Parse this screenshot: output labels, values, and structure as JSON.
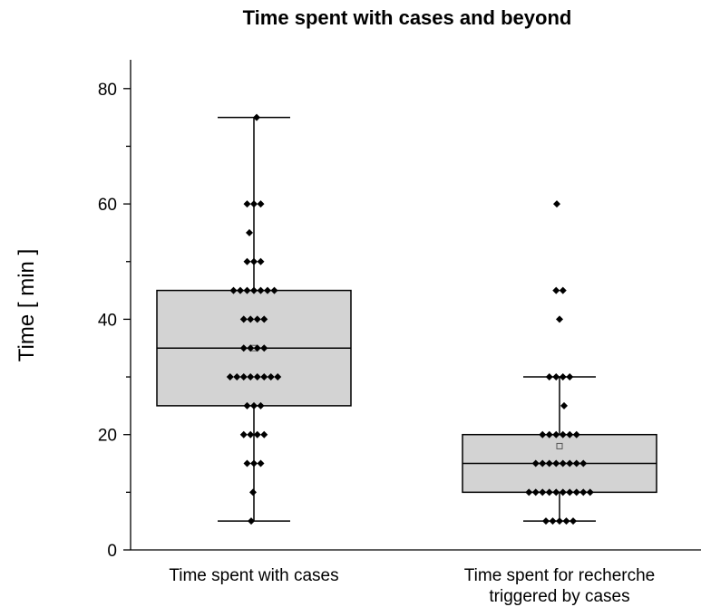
{
  "chart_data": {
    "type": "boxplot",
    "title": "Time spent with cases and beyond",
    "ylabel": "Time [ min ]",
    "xlabel": "",
    "ylim": [
      0,
      85
    ],
    "yticks": [
      0,
      20,
      40,
      60,
      80
    ],
    "grid": false,
    "colors": {
      "box_fill": "#d3d3d3",
      "stroke": "#000000",
      "point": "#000000",
      "mean_marker": "#555555"
    },
    "categories": [
      "Time spent with cases",
      "Time spent for recherche triggered by cases"
    ],
    "boxes": [
      {
        "label": "Time spent with cases",
        "whisker_low": 5,
        "q1": 25,
        "median": 35,
        "q3": 45,
        "whisker_high": 75,
        "mean": 35,
        "points": [
          75,
          60,
          60,
          60,
          55,
          50,
          50,
          50,
          45,
          45,
          45,
          45,
          45,
          45,
          45,
          40,
          40,
          40,
          40,
          35,
          35,
          35,
          35,
          30,
          30,
          30,
          30,
          30,
          30,
          30,
          30,
          25,
          25,
          25,
          20,
          20,
          20,
          20,
          15,
          15,
          15,
          10,
          5
        ]
      },
      {
        "label": "Time spent for recherche triggered by cases",
        "whisker_low": 5,
        "q1": 10,
        "median": 15,
        "q3": 20,
        "whisker_high": 30,
        "mean": 18,
        "points": [
          60,
          45,
          45,
          40,
          30,
          30,
          30,
          30,
          25,
          20,
          20,
          20,
          20,
          20,
          20,
          15,
          15,
          15,
          15,
          15,
          15,
          15,
          15,
          10,
          10,
          10,
          10,
          10,
          10,
          10,
          10,
          10,
          10,
          5,
          5,
          5,
          5,
          5
        ]
      }
    ]
  }
}
